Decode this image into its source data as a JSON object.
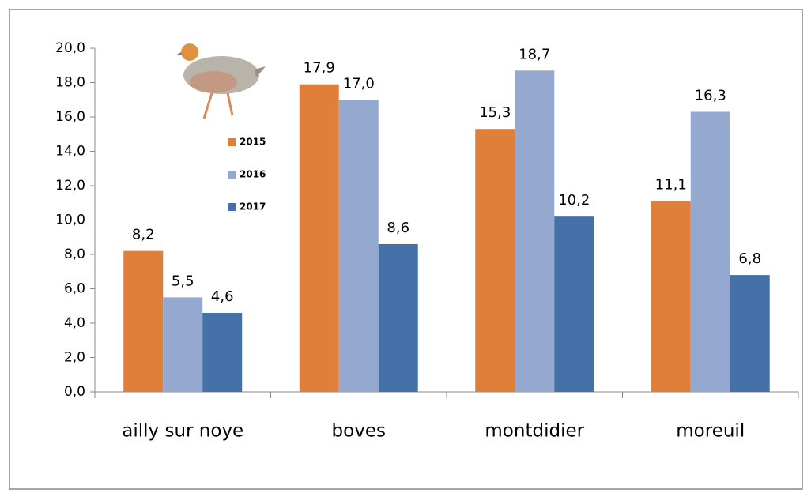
{
  "chart_data": {
    "type": "bar",
    "categories": [
      "ailly sur noye",
      "boves",
      "montdidier",
      "moreuil"
    ],
    "series": [
      {
        "name": "2015",
        "color": "#e07f39",
        "values": [
          8.2,
          17.9,
          15.3,
          11.1
        ],
        "value_labels": [
          "8,2",
          "17,9",
          "15,3",
          "11,1"
        ]
      },
      {
        "name": "2016",
        "color": "#94a8d0",
        "values": [
          5.5,
          17.0,
          18.7,
          16.3
        ],
        "value_labels": [
          "5,5",
          "17,0",
          "18,7",
          "16,3"
        ]
      },
      {
        "name": "2017",
        "color": "#4472a8",
        "values": [
          4.6,
          8.6,
          10.2,
          6.8
        ],
        "value_labels": [
          "4,6",
          "8,6",
          "10,2",
          "6,8"
        ]
      }
    ],
    "ylim": [
      0,
      20
    ],
    "yticks": [
      {
        "value": 0,
        "label": "0,0"
      },
      {
        "value": 2,
        "label": "2,0"
      },
      {
        "value": 4,
        "label": "4,0"
      },
      {
        "value": 6,
        "label": "6,0"
      },
      {
        "value": 8,
        "label": "8,0"
      },
      {
        "value": 10,
        "label": "10,0"
      },
      {
        "value": 12,
        "label": "12,0"
      },
      {
        "value": 14,
        "label": "14,0"
      },
      {
        "value": 16,
        "label": "16,0"
      },
      {
        "value": 18,
        "label": "18,0"
      },
      {
        "value": 20,
        "label": "20,0"
      }
    ],
    "grid": false
  }
}
